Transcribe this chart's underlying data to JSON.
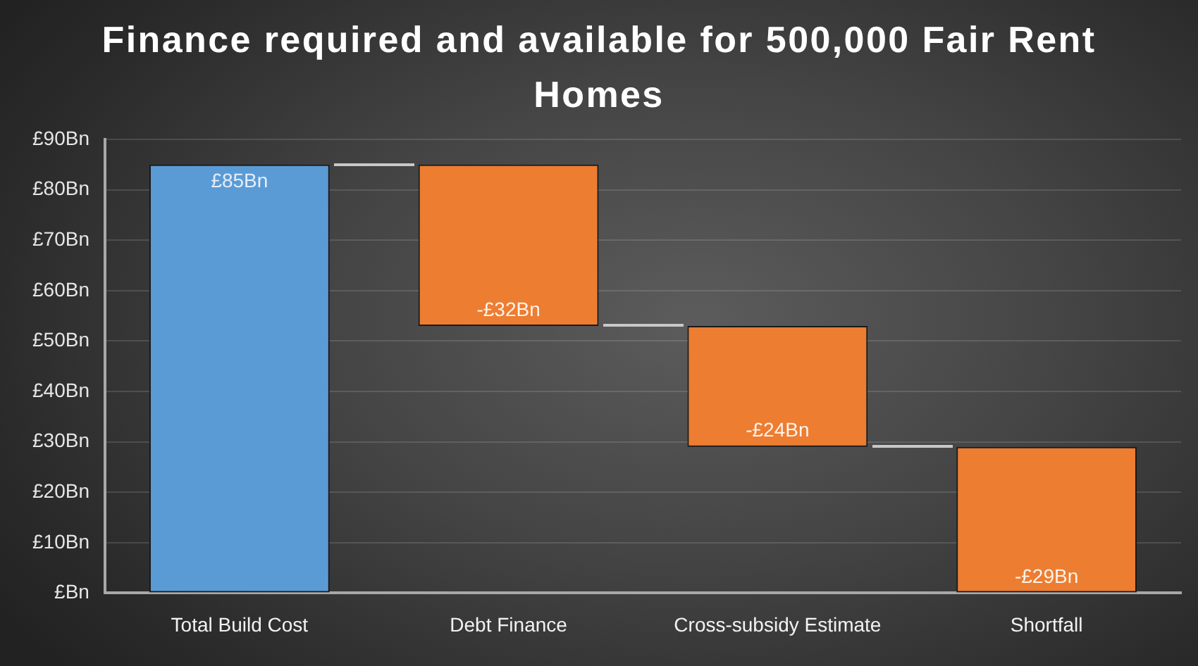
{
  "chart_data": {
    "type": "bar",
    "title": "Finance required and available for 500,000 Fair Rent Homes",
    "categories": [
      "Total Build Cost",
      "Debt Finance",
      "Cross-subsidy Estimate",
      "Shortfall"
    ],
    "values": [
      85,
      -32,
      -24,
      -29
    ],
    "base": [
      0,
      85,
      53,
      29
    ],
    "colors": [
      "#5b9bd5",
      "#ed7d31",
      "#ed7d31",
      "#ed7d31"
    ],
    "ylim": [
      0,
      90
    ],
    "yticks": [
      {
        "value": 0,
        "label": "£Bn"
      },
      {
        "value": 10,
        "label": "£10Bn"
      },
      {
        "value": 20,
        "label": "£20Bn"
      },
      {
        "value": 30,
        "label": "£30Bn"
      },
      {
        "value": 40,
        "label": "£40Bn"
      },
      {
        "value": 50,
        "label": "£50Bn"
      },
      {
        "value": 60,
        "label": "£60Bn"
      },
      {
        "value": 70,
        "label": "£70Bn"
      },
      {
        "value": 80,
        "label": "£80Bn"
      },
      {
        "value": 90,
        "label": "£90Bn"
      }
    ],
    "grid": "y",
    "value_labels": [
      "£85Bn",
      "-£32Bn",
      "-£24Bn",
      "-£29Bn"
    ]
  }
}
